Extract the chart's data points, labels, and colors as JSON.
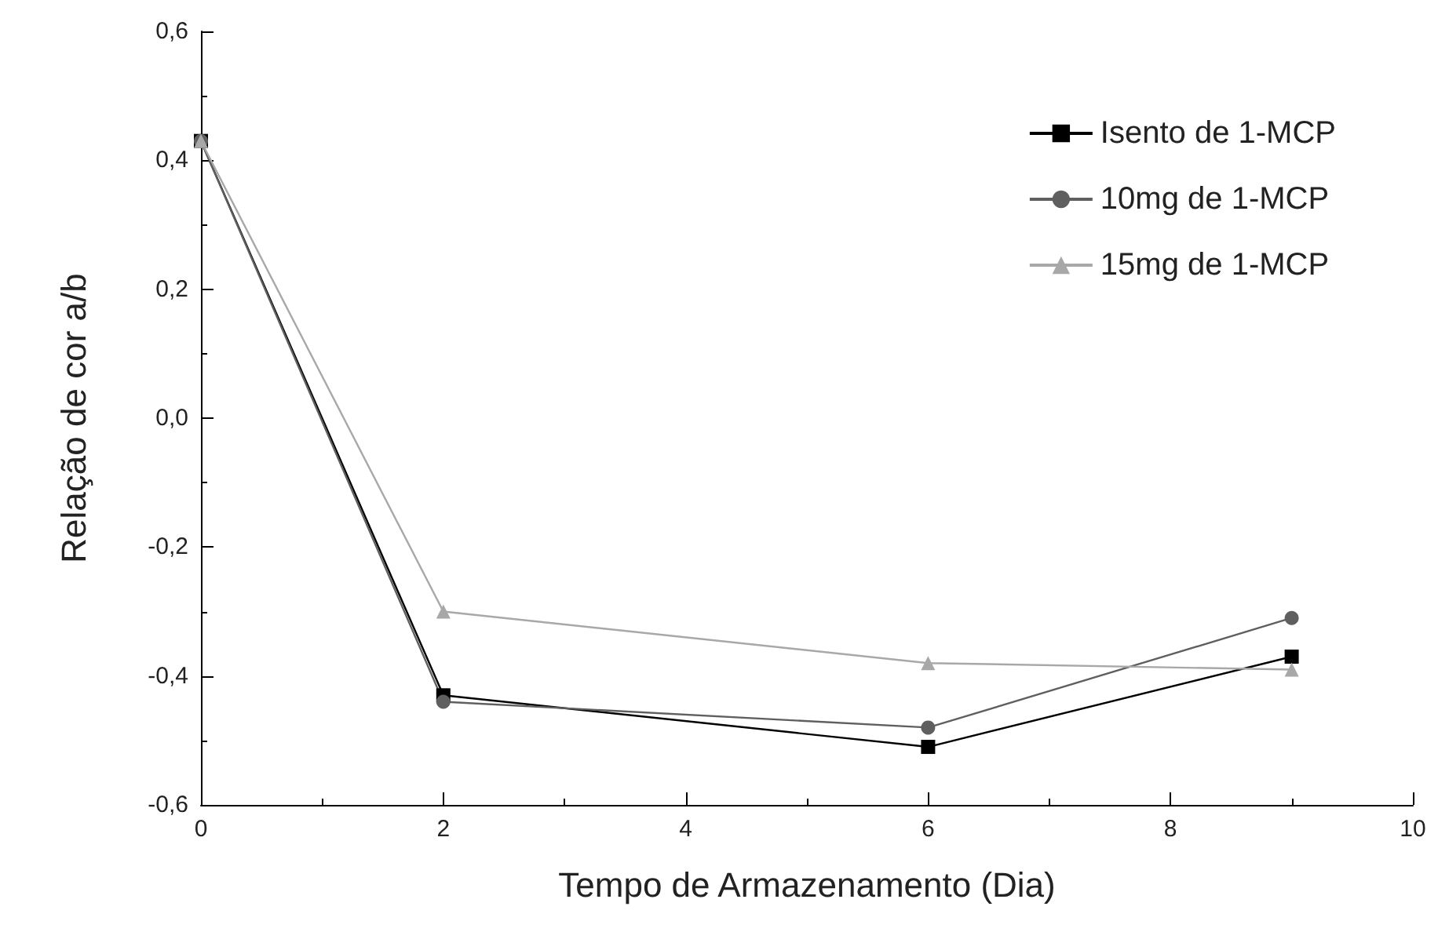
{
  "chart_data": {
    "type": "line",
    "xlabel": "Tempo de Armazenamento (Dia)",
    "ylabel": "Relação de cor a/b",
    "x": [
      0,
      2,
      6,
      9
    ],
    "series": [
      {
        "name": "Isento de 1-MCP",
        "color": "#000000",
        "marker": "square",
        "values": [
          0.43,
          -0.43,
          -0.51,
          -0.37
        ]
      },
      {
        "name": "10mg de 1-MCP",
        "color": "#5f5f5f",
        "marker": "circle",
        "values": [
          0.43,
          -0.44,
          -0.48,
          -0.31
        ]
      },
      {
        "name": "15mg de 1-MCP",
        "color": "#a8a8a8",
        "marker": "triangle",
        "values": [
          0.43,
          -0.3,
          -0.38,
          -0.39
        ]
      }
    ],
    "xlim": [
      0,
      10
    ],
    "xticks": [
      0,
      2,
      4,
      6,
      8,
      10
    ],
    "ylim": [
      -0.6,
      0.6
    ],
    "yticks": [
      {
        "value": -0.6,
        "label": "-0,6"
      },
      {
        "value": -0.4,
        "label": "-0,4"
      },
      {
        "value": -0.2,
        "label": "-0,2"
      },
      {
        "value": 0,
        "label": "0,0"
      },
      {
        "value": 0.2,
        "label": "0,2"
      },
      {
        "value": 0.4,
        "label": "0,4"
      },
      {
        "value": 0.6,
        "label": "0,6"
      }
    ],
    "grid": false,
    "legend": "top right",
    "line_style": "solid"
  }
}
